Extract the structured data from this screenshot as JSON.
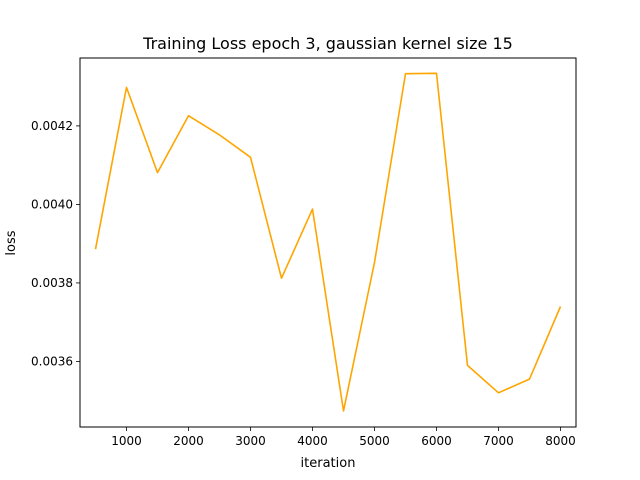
{
  "chart_data": {
    "type": "line",
    "title": "Training Loss epoch 3, gaussian kernel size 15",
    "xlabel": "iteration",
    "ylabel": "loss",
    "xlim": [
      250,
      8250
    ],
    "ylim": [
      0.003433,
      0.004373
    ],
    "xticks": [
      1000,
      2000,
      3000,
      4000,
      5000,
      6000,
      7000,
      8000
    ],
    "xtick_labels": [
      "1000",
      "2000",
      "3000",
      "4000",
      "5000",
      "6000",
      "7000",
      "8000"
    ],
    "yticks": [
      0.0036,
      0.0038,
      0.004,
      0.0042
    ],
    "ytick_labels": [
      "0.0036",
      "0.0038",
      "0.0040",
      "0.0042"
    ],
    "grid": false,
    "line_color": "#ffa500",
    "series": [
      {
        "x": [
          500,
          1000,
          1500,
          2000,
          2500,
          3000,
          3500,
          4000,
          4500,
          5000,
          5500,
          6000,
          6500,
          7000,
          7500,
          8000
        ],
        "values": [
          0.003886,
          0.004298,
          0.004081,
          0.004226,
          0.004177,
          0.00412,
          0.003812,
          0.003988,
          0.003474,
          0.003852,
          0.004333,
          0.004334,
          0.00359,
          0.00352,
          0.003555,
          0.00374
        ]
      }
    ]
  }
}
